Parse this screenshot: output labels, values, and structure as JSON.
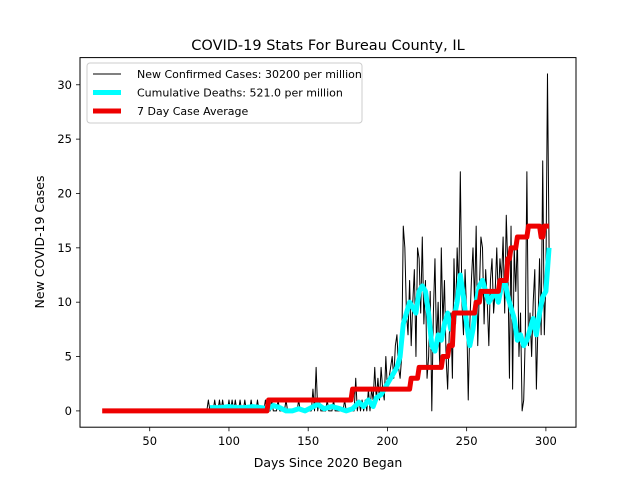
{
  "chart_data": {
    "type": "line",
    "title": "COVID-19 Stats For Bureau County, IL",
    "xlabel": "Days Since 2020 Began",
    "ylabel": "New COVID-19 Cases",
    "xlim": [
      6,
      319
    ],
    "ylim": [
      -1.5,
      32.5
    ],
    "xticks": [
      50,
      100,
      150,
      200,
      250,
      300
    ],
    "yticks": [
      0,
      5,
      10,
      15,
      20,
      25,
      30
    ],
    "grid": false,
    "legend_position": "upper-left",
    "series": [
      {
        "name": "New Confirmed Cases: 30200 per million",
        "color": "#000000",
        "style": "thin",
        "points": [
          [
            86,
            0
          ],
          [
            87,
            1
          ],
          [
            88,
            0
          ],
          [
            89,
            0
          ],
          [
            90,
            0
          ],
          [
            91,
            1
          ],
          [
            92,
            0
          ],
          [
            93,
            0
          ],
          [
            94,
            1
          ],
          [
            95,
            0
          ],
          [
            96,
            1
          ],
          [
            97,
            0
          ],
          [
            98,
            0
          ],
          [
            99,
            0
          ],
          [
            100,
            1
          ],
          [
            101,
            0
          ],
          [
            102,
            1
          ],
          [
            103,
            0
          ],
          [
            104,
            1
          ],
          [
            105,
            0
          ],
          [
            106,
            0
          ],
          [
            107,
            1
          ],
          [
            108,
            0
          ],
          [
            109,
            0
          ],
          [
            110,
            1
          ],
          [
            111,
            0
          ],
          [
            112,
            0
          ],
          [
            113,
            0
          ],
          [
            114,
            1
          ],
          [
            115,
            0
          ],
          [
            116,
            0
          ],
          [
            117,
            0
          ],
          [
            118,
            1
          ],
          [
            119,
            0
          ],
          [
            120,
            0
          ],
          [
            121,
            0
          ],
          [
            122,
            0
          ],
          [
            123,
            1
          ],
          [
            124,
            0
          ],
          [
            125,
            0
          ],
          [
            126,
            0
          ],
          [
            127,
            1
          ],
          [
            128,
            0
          ],
          [
            129,
            0
          ],
          [
            130,
            0
          ],
          [
            131,
            1
          ],
          [
            132,
            0
          ],
          [
            133,
            0
          ],
          [
            134,
            0
          ],
          [
            135,
            0
          ],
          [
            136,
            1
          ],
          [
            137,
            0
          ],
          [
            138,
            0
          ],
          [
            139,
            0
          ],
          [
            140,
            0
          ],
          [
            141,
            0
          ],
          [
            142,
            0
          ],
          [
            143,
            0
          ],
          [
            144,
            1
          ],
          [
            145,
            0
          ],
          [
            146,
            0
          ],
          [
            147,
            0
          ],
          [
            148,
            0
          ],
          [
            149,
            0
          ],
          [
            150,
            0
          ],
          [
            151,
            0
          ],
          [
            152,
            0
          ],
          [
            153,
            2
          ],
          [
            154,
            0
          ],
          [
            155,
            4
          ],
          [
            156,
            0
          ],
          [
            157,
            1
          ],
          [
            158,
            0
          ],
          [
            159,
            0
          ],
          [
            160,
            0
          ],
          [
            161,
            0
          ],
          [
            162,
            1
          ],
          [
            163,
            0
          ],
          [
            164,
            0
          ],
          [
            165,
            0
          ],
          [
            166,
            1
          ],
          [
            167,
            0
          ],
          [
            168,
            0
          ],
          [
            169,
            0
          ],
          [
            170,
            0
          ],
          [
            171,
            0
          ],
          [
            172,
            0
          ],
          [
            173,
            1
          ],
          [
            174,
            0
          ],
          [
            175,
            0
          ],
          [
            176,
            0
          ],
          [
            177,
            0
          ],
          [
            178,
            0
          ],
          [
            179,
            0
          ],
          [
            180,
            3
          ],
          [
            181,
            0
          ],
          [
            182,
            1
          ],
          [
            183,
            0
          ],
          [
            184,
            1
          ],
          [
            185,
            0
          ],
          [
            186,
            1
          ],
          [
            187,
            0
          ],
          [
            188,
            2
          ],
          [
            189,
            0
          ],
          [
            190,
            2
          ],
          [
            191,
            1
          ],
          [
            192,
            4
          ],
          [
            193,
            1
          ],
          [
            194,
            3
          ],
          [
            195,
            1
          ],
          [
            196,
            4
          ],
          [
            197,
            2
          ],
          [
            198,
            1
          ],
          [
            199,
            5
          ],
          [
            200,
            2
          ],
          [
            201,
            3
          ],
          [
            202,
            4
          ],
          [
            203,
            5
          ],
          [
            204,
            3
          ],
          [
            205,
            6
          ],
          [
            206,
            7
          ],
          [
            207,
            4
          ],
          [
            208,
            3
          ],
          [
            209,
            5
          ],
          [
            210,
            17
          ],
          [
            211,
            15
          ],
          [
            212,
            9
          ],
          [
            213,
            7
          ],
          [
            214,
            12
          ],
          [
            215,
            6
          ],
          [
            216,
            10
          ],
          [
            217,
            13
          ],
          [
            218,
            5
          ],
          [
            219,
            15
          ],
          [
            220,
            14
          ],
          [
            221,
            9
          ],
          [
            222,
            16
          ],
          [
            223,
            8
          ],
          [
            224,
            12
          ],
          [
            225,
            3
          ],
          [
            226,
            5
          ],
          [
            227,
            11
          ],
          [
            228,
            0
          ],
          [
            229,
            9
          ],
          [
            230,
            14
          ],
          [
            231,
            6
          ],
          [
            232,
            10
          ],
          [
            233,
            4
          ],
          [
            234,
            15
          ],
          [
            235,
            8
          ],
          [
            236,
            12
          ],
          [
            237,
            5
          ],
          [
            238,
            2
          ],
          [
            239,
            7
          ],
          [
            240,
            9
          ],
          [
            241,
            3
          ],
          [
            242,
            14
          ],
          [
            243,
            8
          ],
          [
            244,
            15
          ],
          [
            245,
            11
          ],
          [
            246,
            22
          ],
          [
            247,
            10
          ],
          [
            248,
            7
          ],
          [
            249,
            13
          ],
          [
            250,
            9
          ],
          [
            251,
            1
          ],
          [
            252,
            8
          ],
          [
            253,
            12
          ],
          [
            254,
            15
          ],
          [
            255,
            10
          ],
          [
            256,
            17
          ],
          [
            257,
            6
          ],
          [
            258,
            11
          ],
          [
            259,
            16
          ],
          [
            260,
            15
          ],
          [
            261,
            8
          ],
          [
            262,
            13
          ],
          [
            263,
            10
          ],
          [
            264,
            6
          ],
          [
            265,
            12
          ],
          [
            266,
            14
          ],
          [
            267,
            9
          ],
          [
            268,
            11
          ],
          [
            269,
            15
          ],
          [
            270,
            10
          ],
          [
            271,
            14
          ],
          [
            272,
            12
          ],
          [
            273,
            16
          ],
          [
            274,
            9
          ],
          [
            275,
            18
          ],
          [
            276,
            13
          ],
          [
            277,
            3
          ],
          [
            278,
            17
          ],
          [
            279,
            2
          ],
          [
            280,
            15
          ],
          [
            281,
            11
          ],
          [
            282,
            16
          ],
          [
            283,
            5
          ],
          [
            284,
            9
          ],
          [
            285,
            0
          ],
          [
            286,
            1
          ],
          [
            287,
            7
          ],
          [
            288,
            22
          ],
          [
            289,
            6
          ],
          [
            290,
            9
          ],
          [
            291,
            5
          ],
          [
            292,
            10
          ],
          [
            293,
            13
          ],
          [
            294,
            2
          ],
          [
            295,
            8
          ],
          [
            296,
            14
          ],
          [
            297,
            7
          ],
          [
            298,
            23
          ],
          [
            299,
            7
          ],
          [
            300,
            12
          ],
          [
            301,
            31
          ],
          [
            302,
            15
          ]
        ]
      },
      {
        "name": "Cumulative Deaths: 521.0 per million",
        "color": "#00ffff",
        "style": "thick",
        "points": [
          [
            88,
            0.3
          ],
          [
            95,
            0.3
          ],
          [
            100,
            0.4
          ],
          [
            105,
            0.3
          ],
          [
            110,
            0.3
          ],
          [
            115,
            0.4
          ],
          [
            120,
            0.3
          ],
          [
            125,
            0.2
          ],
          [
            128,
            0.5
          ],
          [
            132,
            0.3
          ],
          [
            136,
            0.0
          ],
          [
            140,
            0.0
          ],
          [
            144,
            0.2
          ],
          [
            148,
            0.0
          ],
          [
            152,
            0.3
          ],
          [
            156,
            0.6
          ],
          [
            160,
            0.2
          ],
          [
            165,
            0.4
          ],
          [
            170,
            0.2
          ],
          [
            174,
            0.0
          ],
          [
            178,
            0.2
          ],
          [
            182,
            0.8
          ],
          [
            185,
            0.4
          ],
          [
            188,
            1.0
          ],
          [
            191,
            0.4
          ],
          [
            193,
            1.2
          ],
          [
            196,
            1.5
          ],
          [
            198,
            2.0
          ],
          [
            200,
            2.5
          ],
          [
            202,
            3.0
          ],
          [
            204,
            3.5
          ],
          [
            206,
            4.0
          ],
          [
            208,
            5.0
          ],
          [
            210,
            8.0
          ],
          [
            212,
            9.0
          ],
          [
            214,
            10.0
          ],
          [
            216,
            9.5
          ],
          [
            218,
            9.0
          ],
          [
            220,
            11.0
          ],
          [
            222,
            11.5
          ],
          [
            224,
            11.0
          ],
          [
            226,
            9.0
          ],
          [
            228,
            6.0
          ],
          [
            230,
            5.5
          ],
          [
            232,
            7.0
          ],
          [
            234,
            6.5
          ],
          [
            236,
            8.0
          ],
          [
            238,
            9.0
          ],
          [
            240,
            7.5
          ],
          [
            242,
            8.5
          ],
          [
            244,
            10.0
          ],
          [
            246,
            12.5
          ],
          [
            248,
            10.5
          ],
          [
            250,
            8.0
          ],
          [
            252,
            6.0
          ],
          [
            254,
            7.5
          ],
          [
            256,
            10.0
          ],
          [
            258,
            11.5
          ],
          [
            260,
            12.0
          ],
          [
            262,
            11.0
          ],
          [
            264,
            10.0
          ],
          [
            266,
            10.5
          ],
          [
            268,
            11.0
          ],
          [
            270,
            10.0
          ],
          [
            272,
            11.5
          ],
          [
            274,
            12.0
          ],
          [
            276,
            10.5
          ],
          [
            278,
            9.5
          ],
          [
            280,
            8.5
          ],
          [
            282,
            6.5
          ],
          [
            284,
            7.0
          ],
          [
            286,
            6.0
          ],
          [
            288,
            6.5
          ],
          [
            290,
            7.5
          ],
          [
            292,
            8.5
          ],
          [
            294,
            7.0
          ],
          [
            296,
            9.0
          ],
          [
            298,
            10.5
          ],
          [
            300,
            11.0
          ],
          [
            301,
            13.0
          ],
          [
            302,
            15.0
          ]
        ]
      },
      {
        "name": "7 Day Case Average",
        "color": "#ee0000",
        "style": "thick",
        "points": [
          [
            20,
            0
          ],
          [
            124,
            0
          ],
          [
            125,
            1
          ],
          [
            177,
            1
          ],
          [
            178,
            2
          ],
          [
            214,
            2
          ],
          [
            215,
            3
          ],
          [
            219,
            3
          ],
          [
            220,
            4
          ],
          [
            234,
            4
          ],
          [
            235,
            5
          ],
          [
            238,
            5
          ],
          [
            239,
            6
          ],
          [
            241,
            6
          ],
          [
            242,
            9
          ],
          [
            255,
            9
          ],
          [
            256,
            10
          ],
          [
            258,
            10
          ],
          [
            259,
            11
          ],
          [
            270,
            11
          ],
          [
            271,
            12
          ],
          [
            275,
            12
          ],
          [
            276,
            14
          ],
          [
            277,
            14
          ],
          [
            278,
            15
          ],
          [
            281,
            15
          ],
          [
            282,
            16
          ],
          [
            288,
            16
          ],
          [
            289,
            17
          ],
          [
            296,
            17
          ],
          [
            297,
            16
          ],
          [
            298,
            16
          ],
          [
            299,
            17
          ],
          [
            302,
            17
          ]
        ]
      }
    ]
  }
}
